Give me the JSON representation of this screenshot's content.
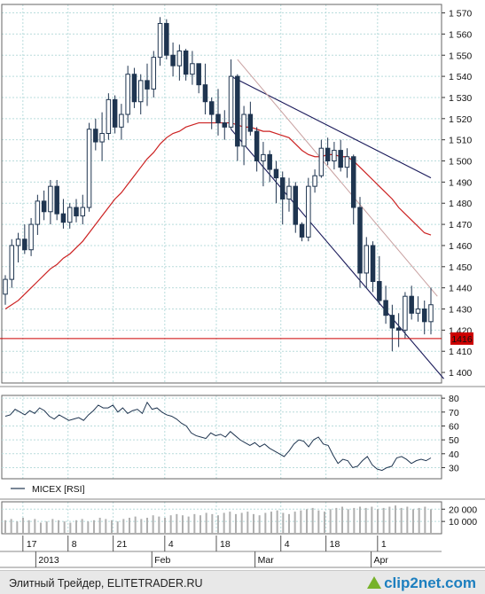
{
  "chart_data": {
    "type": "candlestick",
    "instrument": "MICEX",
    "y_axis": {
      "ticks": [
        "1 570",
        "1 560",
        "1 550",
        "1 540",
        "1 530",
        "1 520",
        "1 510",
        "1 500",
        "1 490",
        "1 480",
        "1 470",
        "1 460",
        "1 450",
        "1 440",
        "1 430",
        "1 420",
        "1 410",
        "1 400"
      ],
      "min": 1395,
      "max": 1574
    },
    "level_line": {
      "value": 1416,
      "label": "1416",
      "color": "#cc0000"
    },
    "candles": [
      [
        1437,
        1446,
        1432,
        1444
      ],
      [
        1444,
        1463,
        1440,
        1460
      ],
      [
        1460,
        1466,
        1452,
        1463
      ],
      [
        1463,
        1470,
        1456,
        1458
      ],
      [
        1458,
        1473,
        1455,
        1470
      ],
      [
        1470,
        1484,
        1465,
        1481
      ],
      [
        1481,
        1486,
        1472,
        1476
      ],
      [
        1476,
        1491,
        1470,
        1488
      ],
      [
        1488,
        1491,
        1472,
        1475
      ],
      [
        1475,
        1482,
        1468,
        1471
      ],
      [
        1471,
        1480,
        1468,
        1478
      ],
      [
        1478,
        1482,
        1471,
        1474
      ],
      [
        1474,
        1484,
        1470,
        1478
      ],
      [
        1478,
        1518,
        1476,
        1515
      ],
      [
        1515,
        1520,
        1505,
        1509
      ],
      [
        1509,
        1523,
        1500,
        1513
      ],
      [
        1513,
        1532,
        1510,
        1529
      ],
      [
        1529,
        1531,
        1513,
        1516
      ],
      [
        1516,
        1527,
        1510,
        1522
      ],
      [
        1522,
        1545,
        1518,
        1541
      ],
      [
        1541,
        1544,
        1525,
        1528
      ],
      [
        1528,
        1541,
        1522,
        1538
      ],
      [
        1538,
        1546,
        1526,
        1534
      ],
      [
        1534,
        1552,
        1530,
        1549
      ],
      [
        1549,
        1568,
        1545,
        1565
      ],
      [
        1565,
        1567,
        1548,
        1550
      ],
      [
        1550,
        1556,
        1540,
        1545
      ],
      [
        1545,
        1555,
        1538,
        1552
      ],
      [
        1552,
        1553,
        1538,
        1541
      ],
      [
        1541,
        1552,
        1536,
        1546
      ],
      [
        1546,
        1546,
        1532,
        1536
      ],
      [
        1536,
        1546,
        1522,
        1528
      ],
      [
        1528,
        1530,
        1515,
        1522
      ],
      [
        1522,
        1534,
        1512,
        1518
      ],
      [
        1518,
        1524,
        1510,
        1516
      ],
      [
        1516,
        1548,
        1515,
        1540
      ],
      [
        1540,
        1541,
        1500,
        1507
      ],
      [
        1507,
        1526,
        1498,
        1522
      ],
      [
        1522,
        1528,
        1512,
        1514
      ],
      [
        1514,
        1516,
        1495,
        1500
      ],
      [
        1500,
        1509,
        1488,
        1503
      ],
      [
        1503,
        1505,
        1490,
        1496
      ],
      [
        1496,
        1500,
        1480,
        1492
      ],
      [
        1492,
        1495,
        1470,
        1482
      ],
      [
        1482,
        1492,
        1476,
        1488
      ],
      [
        1488,
        1490,
        1466,
        1470
      ],
      [
        1470,
        1471,
        1462,
        1464
      ],
      [
        1464,
        1492,
        1462,
        1488
      ],
      [
        1488,
        1496,
        1485,
        1493
      ],
      [
        1493,
        1510,
        1492,
        1506
      ],
      [
        1506,
        1511,
        1498,
        1500
      ],
      [
        1500,
        1509,
        1496,
        1505
      ],
      [
        1505,
        1510,
        1495,
        1497
      ],
      [
        1497,
        1506,
        1492,
        1502
      ],
      [
        1502,
        1503,
        1470,
        1478
      ],
      [
        1478,
        1483,
        1440,
        1447
      ],
      [
        1447,
        1464,
        1440,
        1460
      ],
      [
        1460,
        1462,
        1438,
        1443
      ],
      [
        1443,
        1455,
        1432,
        1434
      ],
      [
        1434,
        1441,
        1423,
        1427
      ],
      [
        1427,
        1432,
        1410,
        1421
      ],
      [
        1421,
        1428,
        1412,
        1420
      ],
      [
        1420,
        1438,
        1416,
        1436
      ],
      [
        1436,
        1441,
        1425,
        1428
      ],
      [
        1428,
        1436,
        1424,
        1430
      ],
      [
        1430,
        1434,
        1418,
        1424
      ],
      [
        1424,
        1440,
        1418,
        1432
      ]
    ],
    "ma": [
      1430,
      1432,
      1434,
      1437,
      1440,
      1443,
      1446,
      1449,
      1451,
      1454,
      1456,
      1459,
      1462,
      1466,
      1470,
      1474,
      1478,
      1482,
      1485,
      1489,
      1493,
      1497,
      1501,
      1504,
      1508,
      1511,
      1513,
      1514,
      1516,
      1517,
      1518,
      1518,
      1518,
      1518,
      1518,
      1518,
      1517,
      1516,
      1516,
      1515,
      1514,
      1514,
      1513,
      1512,
      1511,
      1508,
      1505,
      1503,
      1502,
      1502,
      1503,
      1503,
      1502,
      1502,
      1500,
      1497,
      1494,
      1491,
      1488,
      1485,
      1482,
      1478,
      1475,
      1472,
      1469,
      1466,
      1465
    ],
    "channel": {
      "upper": [
        [
          1540,
          35
        ],
        [
          1492,
          66
        ]
      ],
      "lower": [
        [
          1515,
          35
        ],
        [
          1397,
          68
        ]
      ],
      "mid": [
        [
          1548,
          36
        ],
        [
          1436,
          67
        ]
      ]
    },
    "rsi": {
      "legend": "MICEX [RSI]",
      "ticks": [
        "80",
        "70",
        "60",
        "50",
        "40",
        "30"
      ],
      "values": [
        67,
        68,
        72,
        70,
        68,
        71,
        69,
        73,
        71,
        67,
        65,
        68,
        66,
        64,
        65,
        66,
        64,
        68,
        71,
        75,
        73,
        73,
        75,
        70,
        73,
        69,
        71,
        72,
        69,
        77,
        72,
        73,
        70,
        68,
        67,
        65,
        62,
        60,
        55,
        53,
        52,
        51,
        55,
        53,
        54,
        52,
        56,
        53,
        50,
        48,
        46,
        48,
        45,
        47,
        44,
        42,
        40,
        38,
        42,
        47,
        50,
        49,
        45,
        50,
        52,
        47,
        46,
        39,
        33,
        36,
        35,
        30,
        31,
        35,
        38,
        32,
        29,
        28,
        30,
        31,
        37,
        38,
        36,
        33,
        35,
        36,
        35,
        37
      ]
    },
    "volume": {
      "ticks": [
        "20 000",
        "10 000"
      ],
      "values": [
        11000,
        12000,
        10000,
        13000,
        11000,
        12000,
        9000,
        10000,
        12000,
        11000,
        10000,
        9000,
        11000,
        12000,
        10000,
        11000,
        13000,
        12000,
        11000,
        10000,
        12000,
        13000,
        14000,
        12000,
        13000,
        15000,
        14000,
        13000,
        15000,
        16000,
        15000,
        14000,
        16000,
        15000,
        17000,
        16000,
        15000,
        17000,
        18000,
        16000,
        17000,
        18000,
        16000,
        15000,
        17000,
        18000,
        19000,
        17000,
        16000,
        18000,
        19000,
        20000,
        21000,
        19000,
        18000,
        20000,
        21000,
        22000,
        20000,
        21000,
        22000,
        21000,
        22000,
        20000,
        21000,
        22000,
        23000,
        21000,
        22000,
        20000,
        21000,
        22000,
        20000
      ]
    },
    "x_axis": {
      "day_labels": [
        {
          "label": "17",
          "i": 3
        },
        {
          "label": "8",
          "i": 10
        },
        {
          "label": "21",
          "i": 17
        },
        {
          "label": "4",
          "i": 25
        },
        {
          "label": "18",
          "i": 33
        },
        {
          "label": "4",
          "i": 43
        },
        {
          "label": "18",
          "i": 50
        },
        {
          "label": "1",
          "i": 58
        }
      ],
      "month_labels": [
        {
          "label": "2013",
          "i": 5
        },
        {
          "label": "Feb",
          "i": 23
        },
        {
          "label": "Mar",
          "i": 39
        },
        {
          "label": "Apr",
          "i": 57
        }
      ]
    }
  },
  "footer": {
    "source": "Элитный Трейдер, ELITETRADER.RU",
    "brand": "clip2net.com"
  }
}
